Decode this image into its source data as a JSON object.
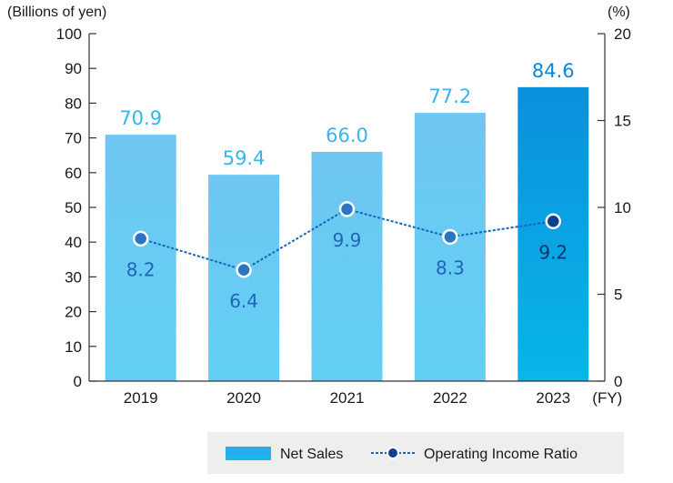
{
  "chart_data": {
    "type": "bar+line",
    "categories": [
      "2019",
      "2020",
      "2021",
      "2022",
      "2023"
    ],
    "x_unit": "(FY)",
    "series": [
      {
        "name": "Net Sales",
        "type": "bar",
        "axis": "left",
        "values": [
          70.9,
          59.4,
          66.0,
          77.2,
          84.6
        ],
        "labels": [
          "70.9",
          "59.4",
          "66.0",
          "77.2",
          "84.6"
        ]
      },
      {
        "name": "Operating Income Ratio",
        "type": "line",
        "axis": "right",
        "values": [
          8.2,
          6.4,
          9.9,
          8.3,
          9.2
        ],
        "labels": [
          "8.2",
          "6.4",
          "9.9",
          "8.3",
          "9.2"
        ]
      }
    ],
    "left_axis": {
      "label": "(Billions of yen)",
      "range": [
        0,
        100
      ],
      "ticks": [
        "0",
        "10",
        "20",
        "30",
        "40",
        "50",
        "60",
        "70",
        "80",
        "90",
        "100"
      ]
    },
    "right_axis": {
      "label": "(%)",
      "range": [
        0,
        20
      ],
      "ticks": [
        "0",
        "5",
        "10",
        "15",
        "20"
      ]
    },
    "grid": false,
    "legend_position": "bottom-right"
  },
  "colors": {
    "bar_light_top": "#6ec6f1",
    "bar_light_bottom": "#62d0f5",
    "bar_highlight_top": "#0b90dc",
    "bar_highlight_bottom": "#08b6ea",
    "bar_label": "#38b5ea",
    "bar_label_highlight": "#0b86d8",
    "line": "#1566b6",
    "marker_fill": "#2a74c4",
    "marker_fill_highlight": "#0d3f8f",
    "ratio_label": "#1f65b6",
    "ratio_label_highlight": "#0d3470",
    "legend_bg": "#eeeeee",
    "axis": "#333333"
  }
}
